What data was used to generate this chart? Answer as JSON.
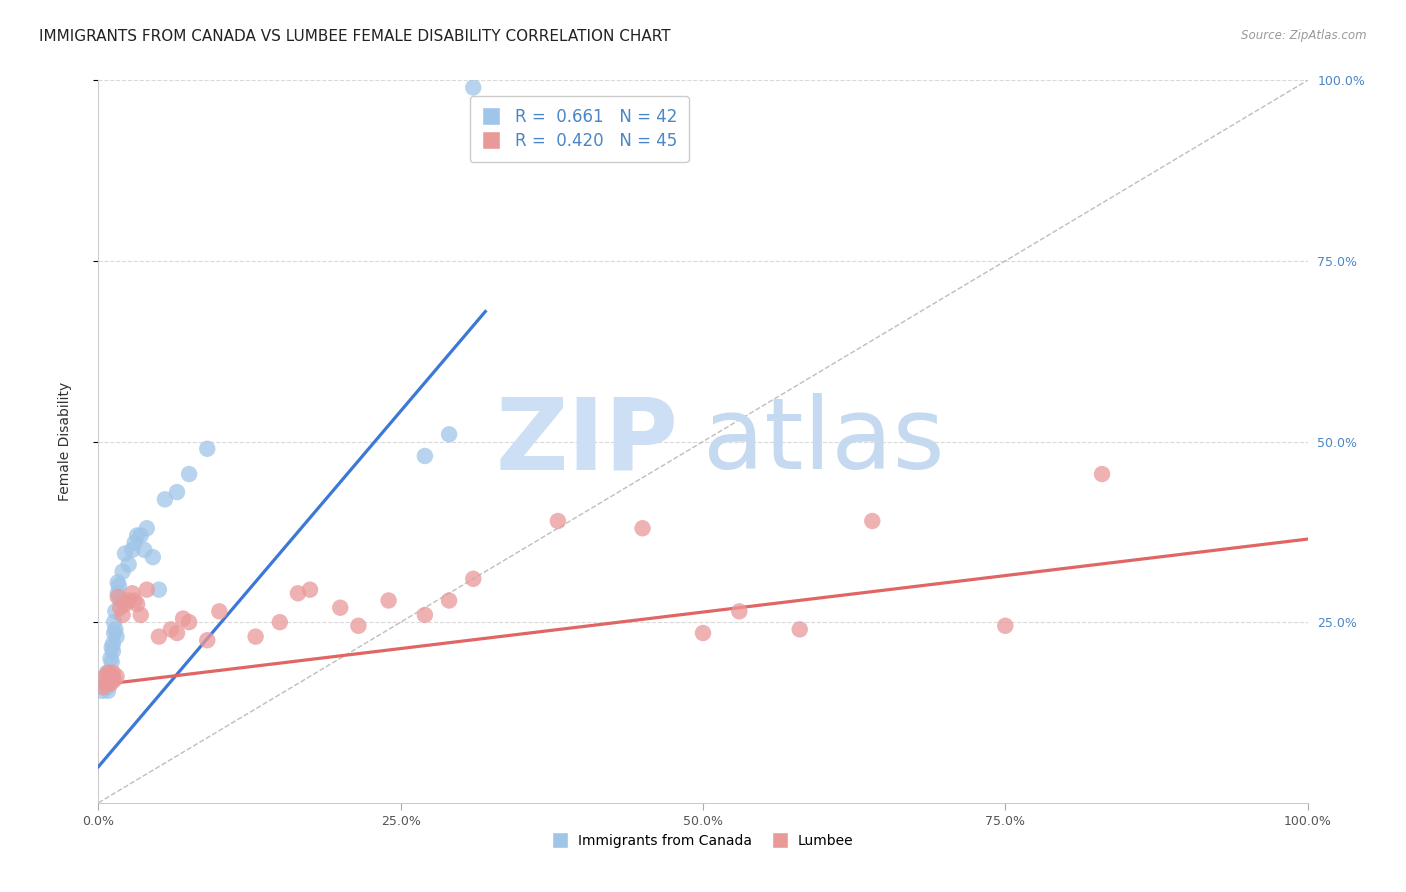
{
  "title": "IMMIGRANTS FROM CANADA VS LUMBEE FEMALE DISABILITY CORRELATION CHART",
  "source": "Source: ZipAtlas.com",
  "ylabel": "Female Disability",
  "xlim": [
    0,
    1.0
  ],
  "ylim": [
    0,
    1.0
  ],
  "xtick_labels": [
    "0.0%",
    "25.0%",
    "50.0%",
    "75.0%",
    "100.0%"
  ],
  "xtick_positions": [
    0.0,
    0.25,
    0.5,
    0.75,
    1.0
  ],
  "ytick_positions": [
    0.25,
    0.5,
    0.75,
    1.0
  ],
  "right_ytick_labels": [
    "25.0%",
    "50.0%",
    "75.0%",
    "100.0%"
  ],
  "legend_blue_r": "0.661",
  "legend_blue_n": "42",
  "legend_pink_r": "0.420",
  "legend_pink_n": "45",
  "blue_color": "#9fc5e8",
  "pink_color": "#ea9999",
  "blue_line_color": "#3c78d8",
  "pink_line_color": "#e06666",
  "diagonal_color": "#b7b7b7",
  "watermark_zip_color": "#ccdff5",
  "watermark_atlas_color": "#c5daf0",
  "blue_scatter_x": [
    0.003,
    0.005,
    0.006,
    0.007,
    0.007,
    0.008,
    0.008,
    0.009,
    0.009,
    0.01,
    0.01,
    0.011,
    0.011,
    0.012,
    0.012,
    0.013,
    0.013,
    0.014,
    0.014,
    0.015,
    0.016,
    0.016,
    0.017,
    0.018,
    0.02,
    0.022,
    0.025,
    0.028,
    0.03,
    0.032,
    0.035,
    0.038,
    0.04,
    0.045,
    0.05,
    0.055,
    0.065,
    0.075,
    0.09,
    0.27,
    0.29,
    0.31
  ],
  "blue_scatter_y": [
    0.155,
    0.17,
    0.165,
    0.18,
    0.16,
    0.155,
    0.165,
    0.17,
    0.18,
    0.175,
    0.2,
    0.195,
    0.215,
    0.22,
    0.21,
    0.235,
    0.25,
    0.24,
    0.265,
    0.23,
    0.29,
    0.305,
    0.3,
    0.28,
    0.32,
    0.345,
    0.33,
    0.35,
    0.36,
    0.37,
    0.37,
    0.35,
    0.38,
    0.34,
    0.295,
    0.42,
    0.43,
    0.455,
    0.49,
    0.48,
    0.51,
    0.99
  ],
  "pink_scatter_x": [
    0.004,
    0.006,
    0.007,
    0.008,
    0.009,
    0.01,
    0.011,
    0.012,
    0.013,
    0.015,
    0.016,
    0.018,
    0.02,
    0.022,
    0.025,
    0.028,
    0.03,
    0.032,
    0.035,
    0.04,
    0.05,
    0.06,
    0.065,
    0.07,
    0.075,
    0.09,
    0.1,
    0.13,
    0.15,
    0.165,
    0.175,
    0.2,
    0.215,
    0.24,
    0.27,
    0.29,
    0.31,
    0.38,
    0.45,
    0.5,
    0.53,
    0.58,
    0.64,
    0.75,
    0.83
  ],
  "pink_scatter_y": [
    0.16,
    0.175,
    0.165,
    0.18,
    0.17,
    0.165,
    0.175,
    0.18,
    0.17,
    0.175,
    0.285,
    0.27,
    0.26,
    0.275,
    0.28,
    0.29,
    0.28,
    0.275,
    0.26,
    0.295,
    0.23,
    0.24,
    0.235,
    0.255,
    0.25,
    0.225,
    0.265,
    0.23,
    0.25,
    0.29,
    0.295,
    0.27,
    0.245,
    0.28,
    0.26,
    0.28,
    0.31,
    0.39,
    0.38,
    0.235,
    0.265,
    0.24,
    0.39,
    0.245,
    0.455
  ],
  "blue_trend_x": [
    0.0,
    0.32
  ],
  "blue_trend_y": [
    0.05,
    0.68
  ],
  "pink_trend_x": [
    0.0,
    1.0
  ],
  "pink_trend_y": [
    0.163,
    0.365
  ],
  "grid_color": "#d9d9d9",
  "background_color": "#ffffff",
  "title_fontsize": 11,
  "label_fontsize": 10,
  "tick_fontsize": 9,
  "legend_fontsize": 12,
  "bottom_legend_labels": [
    "Immigrants from Canada",
    "Lumbee"
  ]
}
